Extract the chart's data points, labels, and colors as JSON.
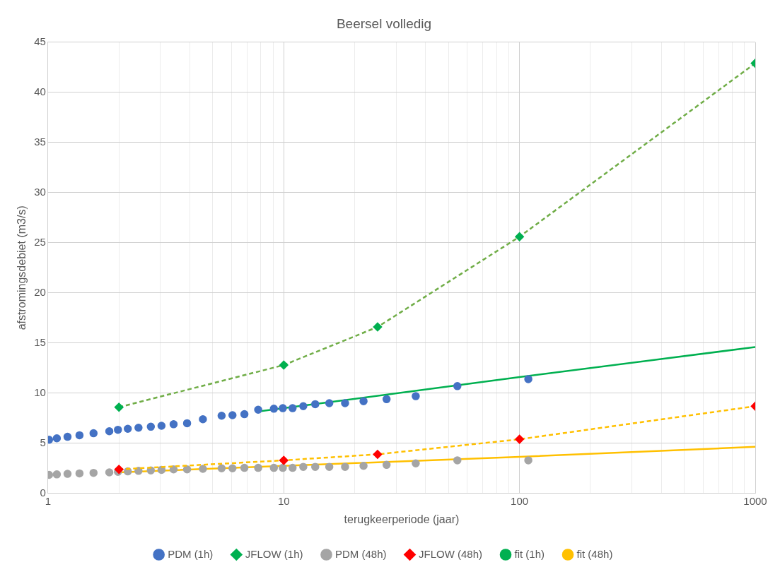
{
  "chart_data": {
    "type": "line",
    "title": "Beersel volledig",
    "xlabel": "terugkeerperiode (jaar)",
    "ylabel": "afstromingsdebiet (m3/s)",
    "log": "x",
    "grid": true,
    "legend": "bottom",
    "xlim": [
      1,
      1000
    ],
    "xticks": [
      1,
      {
        "value": 2,
        "label": null
      },
      {
        "value": 3,
        "label": null
      },
      {
        "value": 4,
        "label": null
      },
      {
        "value": 5,
        "label": null
      },
      {
        "value": 6,
        "label": null
      },
      {
        "value": 7,
        "label": null
      },
      {
        "value": 8,
        "label": null
      },
      {
        "value": 9,
        "label": null
      },
      10,
      {
        "value": 20,
        "label": null
      },
      {
        "value": 30,
        "label": null
      },
      {
        "value": 40,
        "label": null
      },
      {
        "value": 50,
        "label": null
      },
      {
        "value": 60,
        "label": null
      },
      {
        "value": 70,
        "label": null
      },
      {
        "value": 80,
        "label": null
      },
      {
        "value": 90,
        "label": null
      },
      100,
      {
        "value": 200,
        "label": null
      },
      {
        "value": 300,
        "label": null
      },
      {
        "value": 400,
        "label": null
      },
      {
        "value": 500,
        "label": null
      },
      {
        "value": 600,
        "label": null
      },
      {
        "value": 700,
        "label": null
      },
      {
        "value": 800,
        "label": null
      },
      {
        "value": 900,
        "label": null
      },
      1000
    ],
    "ylim": [
      0,
      45
    ],
    "yticks": [
      0,
      5,
      10,
      15,
      20,
      25,
      30,
      35,
      40,
      45
    ],
    "series": [
      {
        "name": "PDM (1h)",
        "type": "scatter",
        "marker": "circle",
        "color": "#4472c4",
        "x": [
          109,
          54.5,
          36.3,
          27.3,
          21.8,
          18.2,
          15.6,
          13.6,
          12.1,
          10.9,
          9.91,
          9.08,
          7.79,
          6.81,
          6.06,
          5.45,
          4.54,
          3.89,
          3.41,
          3.03,
          2.73,
          2.42,
          2.18,
          1.98,
          1.82,
          1.56,
          1.36,
          1.21,
          1.09,
          1.01
        ],
        "values": [
          11.4,
          10.7,
          9.7,
          9.4,
          9.2,
          9.0,
          9.0,
          8.9,
          8.7,
          8.5,
          8.5,
          8.45,
          8.35,
          7.9,
          7.8,
          7.75,
          7.4,
          7.0,
          6.9,
          6.75,
          6.65,
          6.55,
          6.45,
          6.35,
          6.2,
          6.0,
          5.8,
          5.65,
          5.5,
          5.35
        ]
      },
      {
        "name": "JFLOW (1h)",
        "type": "line",
        "marker": "diamond",
        "line_style": "dashed",
        "color": "#70ad47",
        "colors": [
          "#00b050",
          "#00b050",
          "#00b050",
          "#00b050",
          "#00b050"
        ],
        "x": [
          2,
          10,
          25,
          100,
          1000
        ],
        "values": [
          8.6,
          12.8,
          16.6,
          25.6,
          42.9
        ]
      },
      {
        "name": "PDM (48h)",
        "type": "scatter",
        "marker": "circle",
        "color": "#a5a5a5",
        "x": [
          109,
          54.5,
          36.3,
          27.3,
          21.8,
          18.2,
          15.6,
          13.6,
          12.1,
          10.9,
          9.91,
          9.08,
          7.79,
          6.81,
          6.06,
          5.45,
          4.54,
          3.89,
          3.41,
          3.03,
          2.73,
          2.42,
          2.18,
          1.98,
          1.82,
          1.56,
          1.36,
          1.21,
          1.09,
          1.01
        ],
        "values": [
          3.3,
          3.3,
          3.0,
          2.85,
          2.75,
          2.65,
          2.65,
          2.65,
          2.65,
          2.55,
          2.55,
          2.55,
          2.55,
          2.55,
          2.5,
          2.5,
          2.45,
          2.4,
          2.4,
          2.35,
          2.3,
          2.25,
          2.2,
          2.15,
          2.1,
          2.05,
          2.0,
          1.95,
          1.9,
          1.85
        ]
      },
      {
        "name": "JFLOW (48h)",
        "type": "line",
        "marker": "diamond",
        "line_style": "dashed",
        "color": "#ffc000",
        "colors": [
          "#ff0000",
          "#ff0000",
          "#ff0000",
          "#ff0000",
          "#ff0000"
        ],
        "x": [
          2,
          10,
          25,
          100,
          1000
        ],
        "values": [
          2.4,
          3.3,
          3.9,
          5.4,
          8.7
        ]
      },
      {
        "name": "fit (1h)",
        "type": "line",
        "marker": "none",
        "line_style": "solid",
        "color": "#00b050",
        "x": [
          8,
          10,
          100,
          1000
        ],
        "values": [
          8.2,
          8.5,
          11.6,
          14.6
        ]
      },
      {
        "name": "fit (48h)",
        "type": "line",
        "marker": "none",
        "line_style": "solid",
        "color": "#ffc000",
        "x": [
          2,
          10,
          100,
          1000
        ],
        "values": [
          2.1,
          2.75,
          3.65,
          4.65
        ]
      }
    ]
  }
}
